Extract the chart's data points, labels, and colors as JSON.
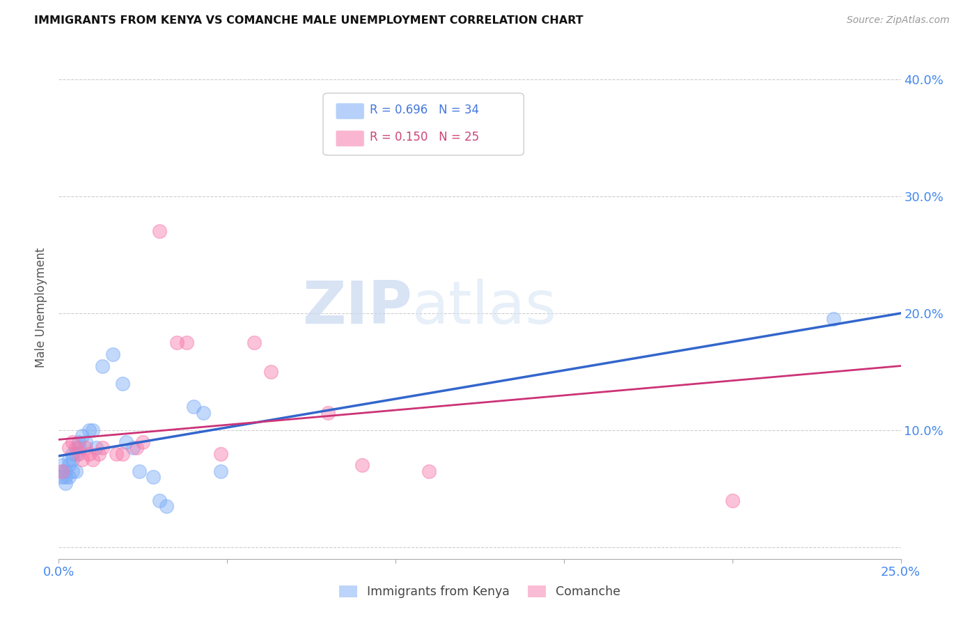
{
  "title": "IMMIGRANTS FROM KENYA VS COMANCHE MALE UNEMPLOYMENT CORRELATION CHART",
  "source": "Source: ZipAtlas.com",
  "ylabel_label": "Male Unemployment",
  "xlim": [
    0.0,
    0.25
  ],
  "ylim": [
    -0.01,
    0.42
  ],
  "blue_color": "#7aabf7",
  "pink_color": "#f77aab",
  "trendline_blue": "#3366cc",
  "trendline_pink": "#cc3377",
  "legend_r_blue": "0.696",
  "legend_n_blue": "34",
  "legend_r_pink": "0.150",
  "legend_n_pink": "25",
  "legend_label_blue": "Immigrants from Kenya",
  "legend_label_pink": "Comanche",
  "watermark_zip": "ZIP",
  "watermark_atlas": "atlas",
  "blue_points": [
    [
      0.001,
      0.06
    ],
    [
      0.001,
      0.065
    ],
    [
      0.001,
      0.07
    ],
    [
      0.002,
      0.055
    ],
    [
      0.002,
      0.06
    ],
    [
      0.002,
      0.065
    ],
    [
      0.003,
      0.06
    ],
    [
      0.003,
      0.07
    ],
    [
      0.003,
      0.075
    ],
    [
      0.004,
      0.065
    ],
    [
      0.004,
      0.075
    ],
    [
      0.004,
      0.08
    ],
    [
      0.005,
      0.065
    ],
    [
      0.005,
      0.08
    ],
    [
      0.006,
      0.085
    ],
    [
      0.006,
      0.09
    ],
    [
      0.007,
      0.095
    ],
    [
      0.008,
      0.09
    ],
    [
      0.009,
      0.1
    ],
    [
      0.01,
      0.1
    ],
    [
      0.011,
      0.085
    ],
    [
      0.013,
      0.155
    ],
    [
      0.016,
      0.165
    ],
    [
      0.019,
      0.14
    ],
    [
      0.02,
      0.09
    ],
    [
      0.022,
      0.085
    ],
    [
      0.024,
      0.065
    ],
    [
      0.028,
      0.06
    ],
    [
      0.03,
      0.04
    ],
    [
      0.032,
      0.035
    ],
    [
      0.04,
      0.12
    ],
    [
      0.043,
      0.115
    ],
    [
      0.048,
      0.065
    ],
    [
      0.23,
      0.195
    ]
  ],
  "pink_points": [
    [
      0.001,
      0.065
    ],
    [
      0.003,
      0.085
    ],
    [
      0.004,
      0.09
    ],
    [
      0.005,
      0.085
    ],
    [
      0.006,
      0.08
    ],
    [
      0.007,
      0.075
    ],
    [
      0.008,
      0.085
    ],
    [
      0.009,
      0.08
    ],
    [
      0.01,
      0.075
    ],
    [
      0.012,
      0.08
    ],
    [
      0.013,
      0.085
    ],
    [
      0.017,
      0.08
    ],
    [
      0.019,
      0.08
    ],
    [
      0.023,
      0.085
    ],
    [
      0.025,
      0.09
    ],
    [
      0.03,
      0.27
    ],
    [
      0.035,
      0.175
    ],
    [
      0.038,
      0.175
    ],
    [
      0.048,
      0.08
    ],
    [
      0.058,
      0.175
    ],
    [
      0.063,
      0.15
    ],
    [
      0.08,
      0.115
    ],
    [
      0.09,
      0.07
    ],
    [
      0.11,
      0.065
    ],
    [
      0.2,
      0.04
    ]
  ],
  "blue_trendline_points": [
    [
      0.0,
      0.078
    ],
    [
      0.25,
      0.2
    ]
  ],
  "pink_trendline_points": [
    [
      0.0,
      0.092
    ],
    [
      0.25,
      0.155
    ]
  ]
}
